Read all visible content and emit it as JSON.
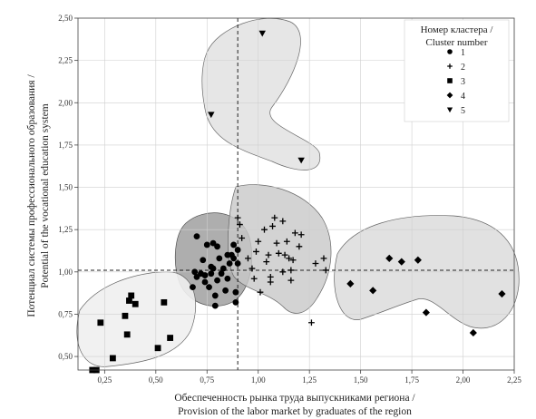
{
  "chart_data": {
    "type": "scatter",
    "xlabel_lines": [
      "Обеспеченность рынка труда выпускниками региона /",
      "Provision of the labor market by graduates of the region"
    ],
    "ylabel_lines": [
      "Потенциал системы профессионального образования /",
      "Potential of the vocational education system"
    ],
    "xlim": [
      0.12,
      2.25
    ],
    "ylim": [
      0.42,
      2.5
    ],
    "x_ticks": [
      "0,25",
      "0,50",
      "0,75",
      "1,00",
      "1,25",
      "1,50",
      "1,75",
      "2,00",
      "2,25"
    ],
    "x_tick_values": [
      0.25,
      0.5,
      0.75,
      1.0,
      1.25,
      1.5,
      1.75,
      2.0,
      2.25
    ],
    "y_ticks": [
      "0,50",
      "0,75",
      "1,00",
      "1,25",
      "1,50",
      "1,75",
      "2,00",
      "2,25",
      "2,50"
    ],
    "y_tick_values": [
      0.5,
      0.75,
      1.0,
      1.25,
      1.5,
      1.75,
      2.0,
      2.25,
      2.5
    ],
    "grid": true,
    "reference_lines": {
      "vertical_x": 0.9,
      "horizontal_y": 1.01
    },
    "legend": {
      "title_lines": [
        "Номер кластера /",
        "Cluster number"
      ],
      "placement": "top-right",
      "entries": [
        "1",
        "2",
        "3",
        "4",
        "5"
      ]
    },
    "series": [
      {
        "name": "1",
        "marker": "circle",
        "hull_color": "#9a9a9a",
        "points": [
          [
            0.68,
            0.91
          ],
          [
            0.69,
            1.0
          ],
          [
            0.7,
            0.97
          ],
          [
            0.7,
            1.21
          ],
          [
            0.72,
            0.99
          ],
          [
            0.73,
            1.07
          ],
          [
            0.74,
            0.94
          ],
          [
            0.75,
            1.16
          ],
          [
            0.76,
            0.91
          ],
          [
            0.77,
            0.99
          ],
          [
            0.78,
            1.02
          ],
          [
            0.78,
            1.17
          ],
          [
            0.79,
            0.8
          ],
          [
            0.79,
            0.86
          ],
          [
            0.8,
            0.95
          ],
          [
            0.8,
            1.15
          ],
          [
            0.81,
            1.08
          ],
          [
            0.82,
            0.99
          ],
          [
            0.83,
            1.02
          ],
          [
            0.84,
            0.89
          ],
          [
            0.85,
            0.96
          ],
          [
            0.85,
            1.1
          ],
          [
            0.86,
            1.05
          ],
          [
            0.87,
            1.1
          ],
          [
            0.88,
            1.08
          ],
          [
            0.88,
            1.16
          ],
          [
            0.89,
            0.82
          ],
          [
            0.89,
            0.88
          ],
          [
            0.9,
            1.05
          ],
          [
            0.9,
            1.13
          ],
          [
            0.77,
            1.03
          ],
          [
            0.74,
            0.98
          ]
        ]
      },
      {
        "name": "2",
        "marker": "plus",
        "hull_color": "#c8c8c8",
        "points": [
          [
            0.9,
            1.32
          ],
          [
            0.91,
            1.28
          ],
          [
            0.92,
            1.2
          ],
          [
            0.95,
            1.08
          ],
          [
            0.97,
            1.02
          ],
          [
            0.98,
            0.96
          ],
          [
            0.99,
            1.12
          ],
          [
            1.0,
            1.18
          ],
          [
            1.01,
            0.88
          ],
          [
            1.03,
            1.25
          ],
          [
            1.05,
            1.1
          ],
          [
            1.06,
            0.97
          ],
          [
            1.06,
            0.94
          ],
          [
            1.07,
            1.27
          ],
          [
            1.08,
            1.32
          ],
          [
            1.09,
            1.17
          ],
          [
            1.1,
            1.11
          ],
          [
            1.12,
            1.0
          ],
          [
            1.12,
            1.3
          ],
          [
            1.14,
            1.18
          ],
          [
            1.15,
            1.08
          ],
          [
            1.16,
            0.95
          ],
          [
            1.16,
            1.01
          ],
          [
            1.18,
            1.23
          ],
          [
            1.2,
            1.15
          ],
          [
            1.21,
            1.22
          ],
          [
            1.26,
            0.7
          ],
          [
            1.28,
            1.05
          ],
          [
            1.32,
            1.08
          ],
          [
            1.33,
            1.01
          ],
          [
            1.17,
            1.07
          ],
          [
            1.13,
            1.1
          ],
          [
            1.04,
            1.06
          ]
        ]
      },
      {
        "name": "3",
        "marker": "square",
        "hull_color": "#efefef",
        "points": [
          [
            0.19,
            0.42
          ],
          [
            0.21,
            0.42
          ],
          [
            0.23,
            0.7
          ],
          [
            0.29,
            0.49
          ],
          [
            0.35,
            0.74
          ],
          [
            0.36,
            0.63
          ],
          [
            0.37,
            0.83
          ],
          [
            0.38,
            0.86
          ],
          [
            0.4,
            0.81
          ],
          [
            0.51,
            0.55
          ],
          [
            0.54,
            0.82
          ],
          [
            0.57,
            0.61
          ]
        ]
      },
      {
        "name": "4",
        "marker": "diamond",
        "hull_color": "#dcdcdc",
        "points": [
          [
            1.45,
            0.93
          ],
          [
            1.56,
            0.89
          ],
          [
            1.64,
            1.08
          ],
          [
            1.7,
            1.06
          ],
          [
            1.78,
            1.07
          ],
          [
            1.82,
            0.76
          ],
          [
            2.05,
            0.64
          ],
          [
            2.19,
            0.87
          ]
        ]
      },
      {
        "name": "5",
        "marker": "triangle-down",
        "hull_color": "#e2e2e2",
        "points": [
          [
            0.77,
            1.93
          ],
          [
            1.02,
            2.41
          ],
          [
            1.21,
            1.66
          ]
        ]
      }
    ]
  }
}
